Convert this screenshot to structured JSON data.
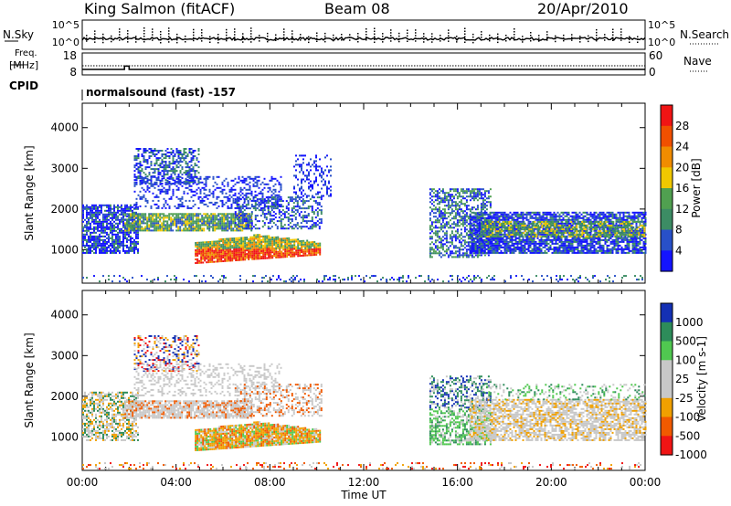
{
  "header": {
    "station": "King Salmon (fitACF)",
    "beam": "Beam 08",
    "date": "20/Apr/2010"
  },
  "side_labels": {
    "nsky": "N.Sky",
    "freq_line1": "Freq.",
    "freq_line2": "[MHz]",
    "cpid": "CPID",
    "nsearch": "N.Search",
    "nave": "Nave"
  },
  "cpid_text": "normalsound (fast) -157",
  "colors": {
    "power_scale": [
      "#1414ff",
      "#2850c8",
      "#3c8c64",
      "#50a050",
      "#f0c800",
      "#f08c00",
      "#f05000",
      "#f01414"
    ],
    "velocity_scale": [
      "#f01414",
      "#f05a00",
      "#f0a000",
      "#c8c8c8",
      "#c8c8c8",
      "#50c850",
      "#2d8c5a",
      "#1430b4"
    ]
  },
  "chart_data": [
    {
      "type": "line",
      "panel": "noise",
      "ylabel_left": "N.Sky",
      "ylabel_right": "N.Search",
      "left_ticks": [
        "10^5",
        "10^0"
      ],
      "right_ticks": [
        "10^5",
        "10^0"
      ],
      "y_scale": "log"
    },
    {
      "type": "line",
      "panel": "frequency",
      "ylabel_left": "Freq. [MHz]",
      "ylabel_right": "Nave",
      "left_ticks": [
        "18",
        "8"
      ],
      "right_ticks": [
        "60",
        "0"
      ],
      "ylim_left": [
        8,
        18
      ],
      "ylim_right": [
        0,
        60
      ],
      "series": [
        {
          "name": "Freq.",
          "x": [
            0,
            1.8,
            1.8,
            2.0,
            2.0,
            24
          ],
          "values": [
            10.5,
            10.5,
            12.0,
            12.0,
            10.5,
            10.5
          ]
        },
        {
          "name": "Nave",
          "x": [
            0,
            24
          ],
          "values": [
            25,
            25
          ]
        }
      ]
    },
    {
      "type": "heatmap",
      "panel": "power",
      "ylabel": "Slant Range [km]",
      "ylim": [
        180,
        4600
      ],
      "xlim": [
        0,
        24
      ],
      "y_ticks": [
        "1000",
        "2000",
        "3000",
        "4000"
      ],
      "colorbar_label": "Power [dB]",
      "colorbar_ticks": [
        "4",
        "8",
        "12",
        "16",
        "20",
        "24",
        "28"
      ],
      "colorbar_range": [
        0,
        32
      ]
    },
    {
      "type": "heatmap",
      "panel": "velocity",
      "ylabel": "Slant Range [km]",
      "ylim": [
        180,
        4600
      ],
      "xlim": [
        0,
        24
      ],
      "y_ticks": [
        "1000",
        "2000",
        "3000",
        "4000"
      ],
      "x_ticks": [
        "00:00",
        "04:00",
        "08:00",
        "12:00",
        "16:00",
        "20:00",
        "00:00"
      ],
      "xlabel": "Time UT",
      "colorbar_label": "Velocity [m s-1]",
      "colorbar_ticks": [
        "1000",
        "500",
        "100",
        "25",
        "-25",
        "-100",
        "-500",
        "-1000"
      ]
    }
  ]
}
